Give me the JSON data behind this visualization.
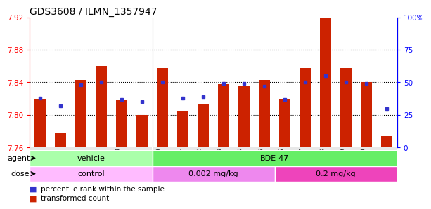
{
  "title": "GDS3608 / ILMN_1357947",
  "samples": [
    "GSM496404",
    "GSM496405",
    "GSM496406",
    "GSM496407",
    "GSM496408",
    "GSM496409",
    "GSM496410",
    "GSM496411",
    "GSM496412",
    "GSM496413",
    "GSM496414",
    "GSM496415",
    "GSM496416",
    "GSM496417",
    "GSM496418",
    "GSM496419",
    "GSM496420",
    "GSM496421"
  ],
  "bar_values": [
    7.82,
    7.778,
    7.843,
    7.86,
    7.818,
    7.8,
    7.858,
    7.805,
    7.813,
    7.838,
    7.836,
    7.843,
    7.82,
    7.858,
    7.92,
    7.858,
    7.84,
    7.774
  ],
  "percentile_values": [
    38,
    32,
    48,
    50,
    37,
    35,
    50,
    38,
    39,
    49,
    49,
    47,
    37,
    50,
    55,
    50,
    49,
    30
  ],
  "y_min": 7.76,
  "y_max": 7.92,
  "bar_color": "#cc2200",
  "dot_color": "#3333cc",
  "bg_color": "#ffffff",
  "title_fontsize": 10,
  "agent_groups": [
    {
      "label": "vehicle",
      "start": 0,
      "end": 6,
      "color": "#aaffaa"
    },
    {
      "label": "BDE-47",
      "start": 6,
      "end": 18,
      "color": "#66ee66"
    }
  ],
  "dose_groups": [
    {
      "label": "control",
      "start": 0,
      "end": 6,
      "color": "#ffbbff"
    },
    {
      "label": "0.002 mg/kg",
      "start": 6,
      "end": 12,
      "color": "#ee88ee"
    },
    {
      "label": "0.2 mg/kg",
      "start": 12,
      "end": 18,
      "color": "#ee44bb"
    }
  ],
  "right_axis_ticks": [
    0,
    25,
    50,
    75,
    100
  ],
  "left_axis_ticks": [
    7.76,
    7.8,
    7.84,
    7.88,
    7.92
  ],
  "legend_red": "transformed count",
  "legend_blue": "percentile rank within the sample"
}
